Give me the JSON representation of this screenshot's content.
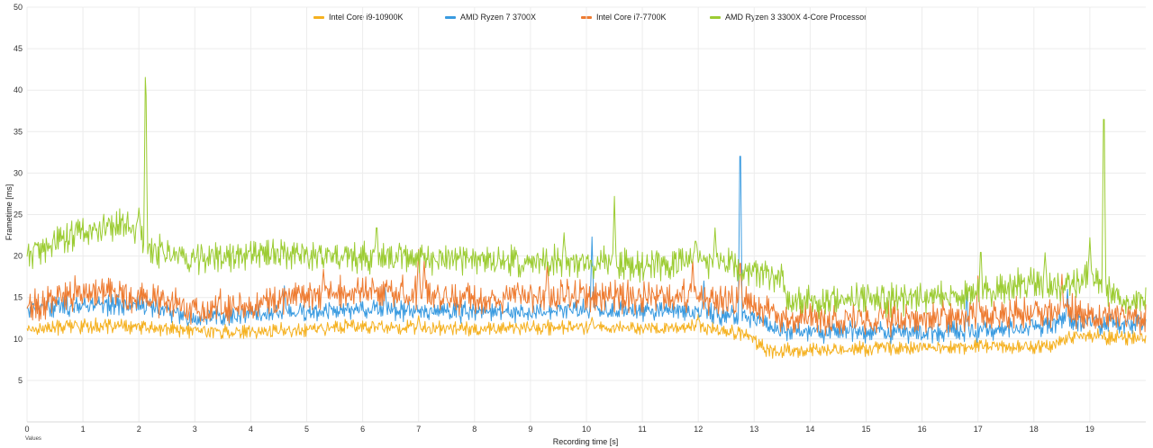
{
  "chart_data": {
    "type": "line",
    "xlabel": "Recording time [s]",
    "ylabel": "Frametime [ms]",
    "corner_label": "Values",
    "xlim": [
      0,
      20
    ],
    "ylim": [
      0,
      50
    ],
    "xticks": [
      0,
      1,
      2,
      3,
      4,
      5,
      6,
      7,
      8,
      9,
      10,
      11,
      12,
      13,
      14,
      15,
      16,
      17,
      18,
      19
    ],
    "yticks": [
      5,
      10,
      15,
      20,
      25,
      30,
      35,
      40,
      45,
      50
    ],
    "grid": true,
    "legend_position": "top",
    "series": [
      {
        "name": "Intel Core i9-10900K",
        "color": "#f5b120",
        "base": [
          [
            0,
            11.2
          ],
          [
            1,
            11.6
          ],
          [
            2,
            11.4
          ],
          [
            3,
            11.0
          ],
          [
            4,
            10.8
          ],
          [
            5,
            11.2
          ],
          [
            6,
            11.6
          ],
          [
            7,
            11.3
          ],
          [
            8,
            11.2
          ],
          [
            9,
            11.3
          ],
          [
            10,
            11.5
          ],
          [
            11,
            11.3
          ],
          [
            12,
            11.4
          ],
          [
            12.9,
            10.5
          ],
          [
            13.2,
            8.6
          ],
          [
            14,
            8.6
          ],
          [
            15,
            8.9
          ],
          [
            16,
            9.0
          ],
          [
            17,
            9.2
          ],
          [
            18,
            9.0
          ],
          [
            18.5,
            9.6
          ],
          [
            18.7,
            10.4
          ],
          [
            19,
            10.4
          ],
          [
            20,
            10.1
          ]
        ],
        "noise": 1.0,
        "spikes": [
          [
            7.0,
            12.8
          ],
          [
            10.1,
            12.6
          ],
          [
            12.0,
            13.0
          ]
        ]
      },
      {
        "name": "AMD Ryzen 7 3700X",
        "color": "#3a9be0",
        "base": [
          [
            0,
            13.6
          ],
          [
            1,
            14.2
          ],
          [
            2,
            14.1
          ],
          [
            3,
            12.6
          ],
          [
            4,
            13.0
          ],
          [
            5,
            13.2
          ],
          [
            6,
            13.6
          ],
          [
            7,
            13.4
          ],
          [
            8,
            13.2
          ],
          [
            9,
            13.3
          ],
          [
            10,
            13.5
          ],
          [
            11,
            13.4
          ],
          [
            12,
            13.3
          ],
          [
            13,
            12.5
          ],
          [
            13.5,
            11.0
          ],
          [
            14,
            10.8
          ],
          [
            15,
            10.8
          ],
          [
            16,
            10.9
          ],
          [
            17,
            11.0
          ],
          [
            18,
            11.4
          ],
          [
            18.5,
            12.2
          ],
          [
            19,
            11.9
          ],
          [
            20,
            11.8
          ]
        ],
        "noise": 1.4,
        "spikes": [
          [
            4.6,
            16.4
          ],
          [
            6.4,
            16.3
          ],
          [
            10.1,
            22.3
          ],
          [
            12.1,
            17.0
          ],
          [
            12.75,
            37.3
          ],
          [
            16.8,
            15.5
          ],
          [
            18.6,
            16.0
          ]
        ]
      },
      {
        "name": "Intel Core i7-7700K",
        "color": "#ee7c32",
        "base": [
          [
            0,
            14.0
          ],
          [
            1,
            15.6
          ],
          [
            2,
            15.2
          ],
          [
            3,
            13.6
          ],
          [
            4,
            14.0
          ],
          [
            5,
            15.2
          ],
          [
            6,
            15.8
          ],
          [
            7,
            15.4
          ],
          [
            8,
            15.0
          ],
          [
            9,
            15.4
          ],
          [
            10,
            15.0
          ],
          [
            11,
            15.2
          ],
          [
            12,
            15.0
          ],
          [
            13,
            14.2
          ],
          [
            13.5,
            12.6
          ],
          [
            14,
            12.4
          ],
          [
            15,
            12.4
          ],
          [
            16,
            12.6
          ],
          [
            17,
            12.8
          ],
          [
            18,
            13.0
          ],
          [
            18.5,
            13.5
          ],
          [
            19,
            12.8
          ],
          [
            20,
            12.3
          ]
        ],
        "noise": 2.2,
        "spikes": [
          [
            5.3,
            18.4
          ],
          [
            7.0,
            20.8
          ],
          [
            7.1,
            19.4
          ],
          [
            9.3,
            19.0
          ],
          [
            11.9,
            19.6
          ],
          [
            12.75,
            20.4
          ],
          [
            17.0,
            17.6
          ],
          [
            18.5,
            17.8
          ]
        ]
      },
      {
        "name": "AMD Ryzen 3 3300X 4-Core Processor",
        "color": "#9ccc33",
        "base": [
          [
            0,
            20.0
          ],
          [
            0.8,
            22.6
          ],
          [
            1.5,
            23.8
          ],
          [
            2.0,
            23.2
          ],
          [
            2.1,
            21.0
          ],
          [
            3,
            19.6
          ],
          [
            4,
            20.2
          ],
          [
            5,
            20.3
          ],
          [
            6,
            19.8
          ],
          [
            7,
            19.6
          ],
          [
            8,
            19.5
          ],
          [
            9,
            19.2
          ],
          [
            10,
            19.4
          ],
          [
            11,
            18.8
          ],
          [
            12,
            19.6
          ],
          [
            12.4,
            19.2
          ],
          [
            13,
            17.8
          ],
          [
            13.5,
            17.4
          ],
          [
            13.6,
            14.6
          ],
          [
            14,
            14.6
          ],
          [
            15,
            14.8
          ],
          [
            16,
            15.0
          ],
          [
            17,
            15.4
          ],
          [
            18,
            16.8
          ],
          [
            18.8,
            16.8
          ],
          [
            19,
            17.6
          ],
          [
            19.4,
            15.4
          ],
          [
            20,
            14.2
          ]
        ],
        "noise": 2.2,
        "spikes": [
          [
            2.0,
            25.8
          ],
          [
            2.12,
            45.8
          ],
          [
            6.25,
            24.4
          ],
          [
            9.6,
            22.8
          ],
          [
            10.5,
            27.2
          ],
          [
            11.95,
            22.4
          ],
          [
            12.3,
            23.4
          ],
          [
            17.05,
            21.8
          ],
          [
            18.2,
            20.4
          ],
          [
            19.0,
            22.2
          ],
          [
            19.25,
            42.0
          ]
        ]
      }
    ]
  }
}
